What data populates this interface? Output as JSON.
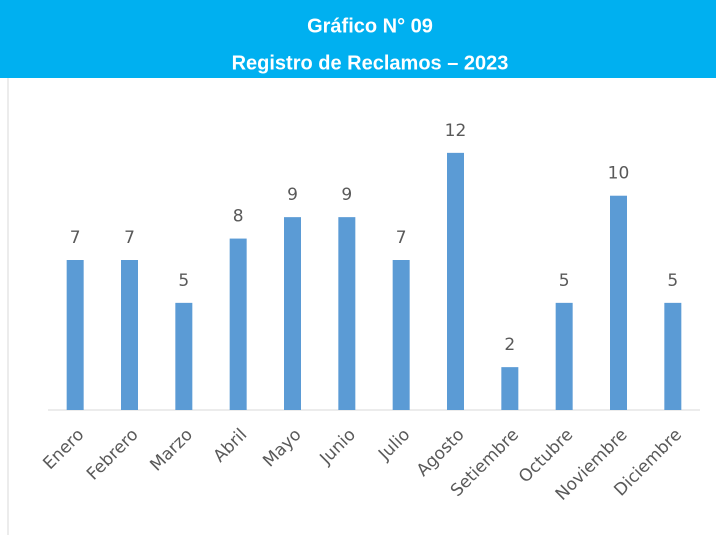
{
  "chart_data": {
    "type": "bar",
    "title": "Gráfico N° 09",
    "subtitle": "Registro de Reclamos – 2023",
    "categories": [
      "Enero",
      "Febrero",
      "Marzo",
      "Abril",
      "Mayo",
      "Junio",
      "Julio",
      "Agosto",
      "Setiembre",
      "Octubre",
      "Noviembre",
      "Diciembre"
    ],
    "values": [
      7,
      7,
      5,
      8,
      9,
      9,
      7,
      12,
      2,
      5,
      10,
      5
    ],
    "color": "#5b9bd5",
    "ylim": [
      0,
      14
    ],
    "grid": false
  }
}
